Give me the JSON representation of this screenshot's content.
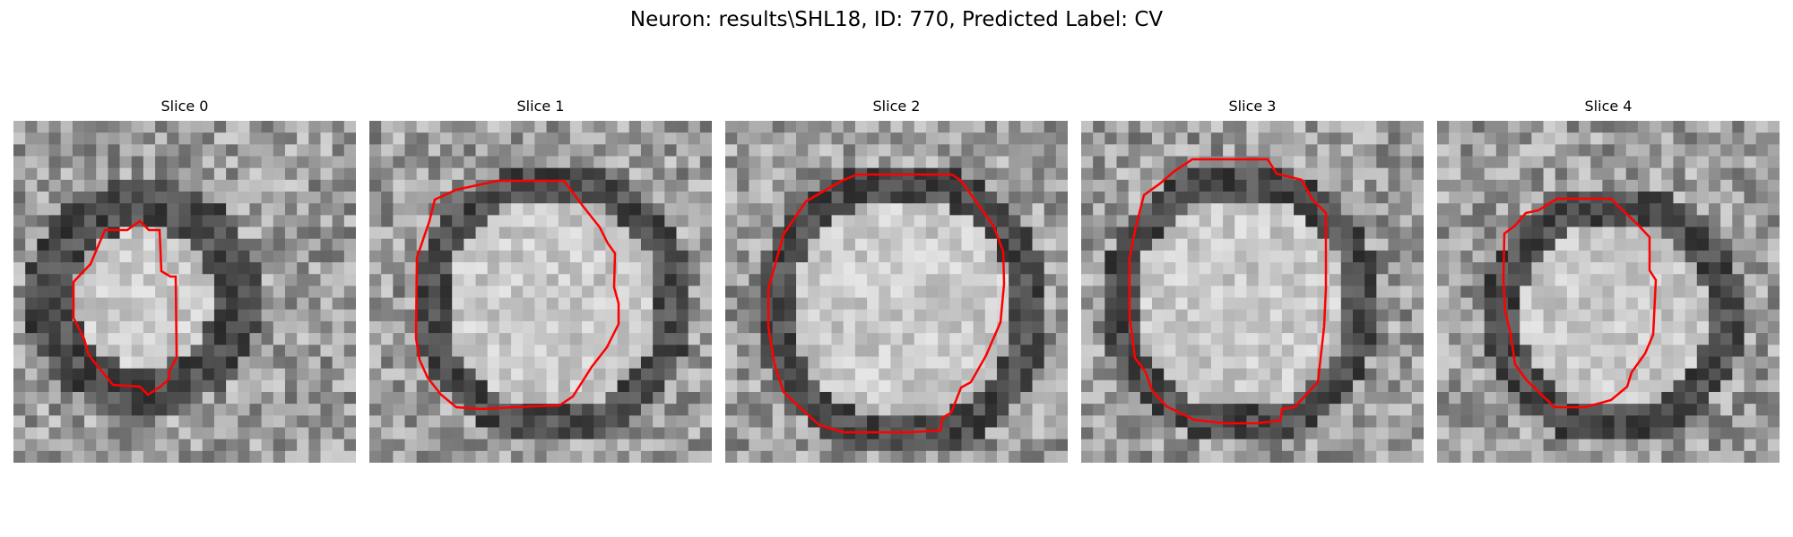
{
  "figure": {
    "title": "Neuron: results\\SHL18, ID: 770, Predicted Label: CV"
  },
  "panels": [
    {
      "title": "Slice 0",
      "contour_color": "#ff0000"
    },
    {
      "title": "Slice 1",
      "contour_color": "#ff0000"
    },
    {
      "title": "Slice 2",
      "contour_color": "#ff0000"
    },
    {
      "title": "Slice 3",
      "contour_color": "#ff0000"
    },
    {
      "title": "Slice 4",
      "contour_color": "#ff0000"
    }
  ],
  "colormap": "gray"
}
